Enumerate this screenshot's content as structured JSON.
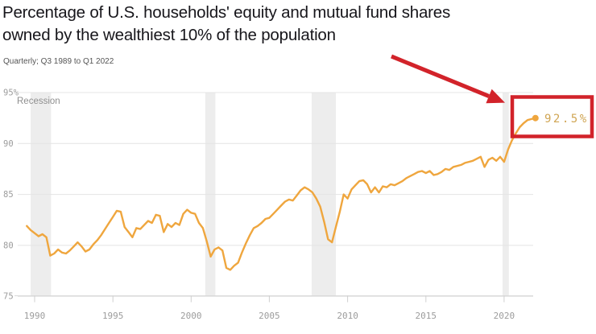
{
  "header": {
    "title_line1": "Percentage of U.S. households' equity and mutual fund shares",
    "title_line2": "owned by the wealthiest 10% of the population",
    "subtitle": "Quarterly; Q3 1989 to Q1 2022"
  },
  "chart_data": {
    "type": "line",
    "title": "Percentage of U.S. households' equity and mutual fund shares owned by the wealthiest 10% of the population",
    "subtitle": "Quarterly; Q3 1989 to Q1 2022",
    "x_unit": "year (quarterly)",
    "x_start": 1989.5,
    "x_step": 0.25,
    "x_end": 2022.0,
    "values": [
      81.9,
      81.5,
      81.2,
      80.9,
      81.1,
      80.8,
      79.0,
      79.2,
      79.6,
      79.3,
      79.2,
      79.5,
      79.9,
      80.3,
      79.9,
      79.4,
      79.6,
      80.1,
      80.5,
      81.0,
      81.6,
      82.2,
      82.8,
      83.4,
      83.3,
      81.8,
      81.3,
      80.8,
      81.7,
      81.6,
      82.0,
      82.4,
      82.2,
      83.0,
      82.9,
      81.3,
      82.1,
      81.8,
      82.2,
      82.0,
      83.1,
      83.5,
      83.2,
      83.1,
      82.2,
      81.7,
      80.4,
      78.9,
      79.6,
      79.8,
      79.5,
      77.8,
      77.6,
      78.0,
      78.3,
      79.3,
      80.2,
      81.0,
      81.7,
      81.9,
      82.2,
      82.6,
      82.7,
      83.1,
      83.5,
      83.9,
      84.3,
      84.5,
      84.4,
      84.9,
      85.4,
      85.7,
      85.5,
      85.2,
      84.6,
      83.8,
      82.3,
      80.6,
      80.3,
      81.8,
      83.3,
      85.0,
      84.6,
      85.5,
      85.9,
      86.3,
      86.4,
      86.0,
      85.2,
      85.7,
      85.2,
      85.8,
      85.7,
      86.0,
      85.9,
      86.1,
      86.3,
      86.6,
      86.8,
      87.0,
      87.2,
      87.3,
      87.1,
      87.3,
      86.9,
      87.0,
      87.2,
      87.5,
      87.4,
      87.7,
      87.8,
      87.9,
      88.1,
      88.2,
      88.3,
      88.5,
      88.7,
      87.7,
      88.4,
      88.6,
      88.3,
      88.7,
      88.2,
      89.4,
      90.3,
      91.0,
      91.6,
      92.0,
      92.3,
      92.4,
      92.5
    ],
    "final_point": {
      "x": 2022.0,
      "value": 92.5,
      "label": "92.5%"
    },
    "ylim": [
      75,
      95
    ],
    "yticks": [
      {
        "v": 95,
        "label": "95%"
      },
      {
        "v": 90,
        "label": "90"
      },
      {
        "v": 85,
        "label": "85"
      },
      {
        "v": 80,
        "label": "80"
      },
      {
        "v": 75,
        "label": "75"
      }
    ],
    "xticks": [
      {
        "v": 1990,
        "label": "1990"
      },
      {
        "v": 1995,
        "label": "1995"
      },
      {
        "v": 2000,
        "label": "2000"
      },
      {
        "v": 2005,
        "label": "2005"
      },
      {
        "v": 2010,
        "label": "2010"
      },
      {
        "v": 2015,
        "label": "2015"
      },
      {
        "v": 2020,
        "label": "2020"
      }
    ],
    "grid": true,
    "legend": "none",
    "recession_label": "Recession",
    "recession_bands": [
      {
        "from": 1989.75,
        "to": 1991.05
      },
      {
        "from": 2000.9,
        "to": 2001.55
      },
      {
        "from": 2007.7,
        "to": 2009.25
      },
      {
        "from": 2019.9,
        "to": 2020.3
      }
    ],
    "colors": {
      "line": "#efa63e",
      "end_dot": "#efa63e",
      "end_label": "#d0a553",
      "grid": "#e4e4e4",
      "axis": "#d9d9d9",
      "tick_mark": "#cfcfcf",
      "tick_text": "#9c9c9c",
      "band": "#ededed",
      "recession_label": "#8f8f8f",
      "annotation_red": "#d2232a",
      "title_text": "#17161b",
      "subtitle_text": "#555555",
      "background": "#ffffff"
    }
  }
}
